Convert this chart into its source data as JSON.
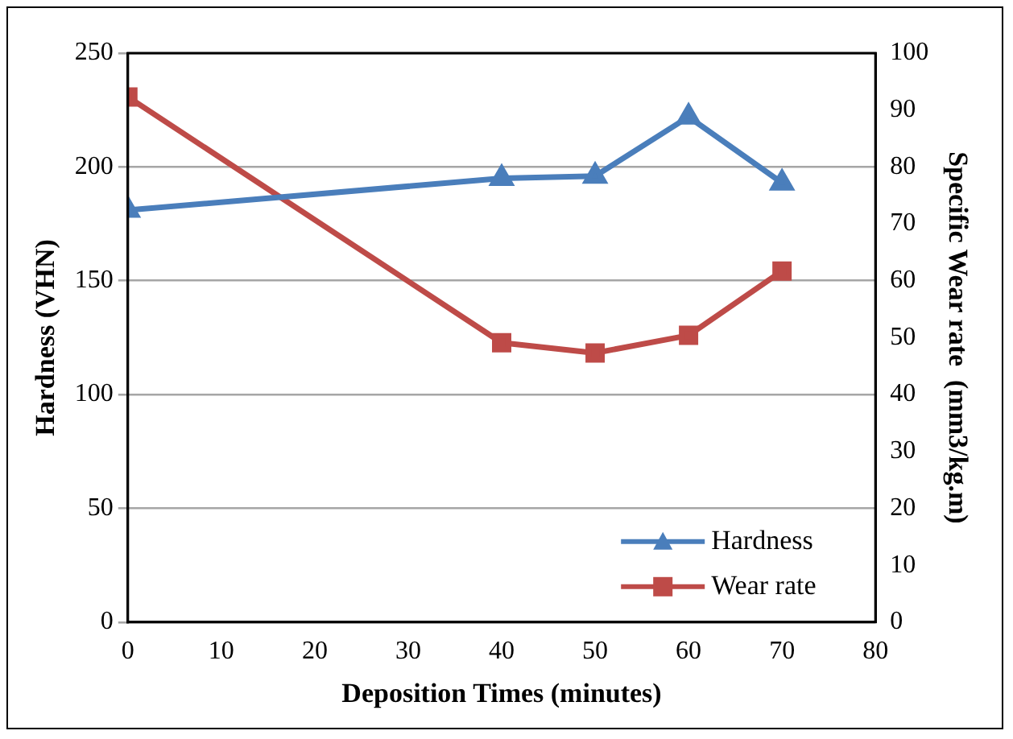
{
  "chart_data": {
    "type": "line",
    "xlabel": "Deposition Times (minutes)",
    "ylabel": "Hardness (VHN)",
    "y2label": "Specific Wear rate  (mm3/kg.m)",
    "x": [
      0,
      40,
      50,
      60,
      70
    ],
    "xlim": [
      0,
      80
    ],
    "xticks": [
      0,
      10,
      20,
      30,
      40,
      50,
      60,
      70,
      80
    ],
    "ylim": [
      0,
      250
    ],
    "yticks": [
      0,
      50,
      100,
      150,
      200,
      250
    ],
    "y2lim": [
      0,
      100
    ],
    "y2ticks": [
      0,
      10,
      20,
      30,
      40,
      50,
      60,
      70,
      80,
      90,
      100
    ],
    "series": [
      {
        "name": "Hardness",
        "color": "#4a7ebb",
        "marker": "triangle",
        "values": [
          181,
          195,
          196,
          222,
          193
        ]
      },
      {
        "name": "Wear rate",
        "color": "#be4b48",
        "marker": "square",
        "axis": "y2",
        "values": [
          92.3,
          49.1,
          47.3,
          50.4,
          61.7
        ]
      }
    ],
    "grid": "y",
    "legend": "bottom right",
    "line_style": "solid"
  }
}
